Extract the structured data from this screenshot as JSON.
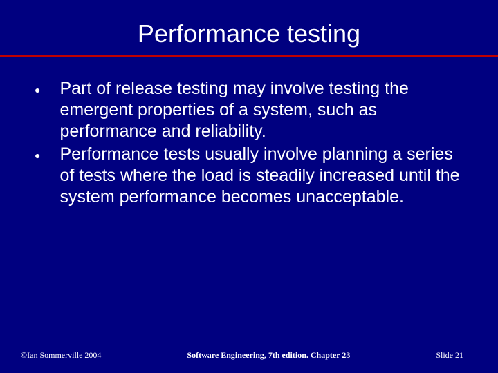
{
  "title": "Performance testing",
  "bullets": [
    "Part of release testing may involve testing the emergent properties of a system, such as performance and reliability.",
    "Performance tests usually involve planning a series of tests where the load is steadily increased until the system performance becomes unacceptable."
  ],
  "footer": {
    "left": "©Ian Sommerville 2004",
    "center": "Software Engineering, 7th edition. Chapter 23",
    "right": "Slide 21"
  },
  "colors": {
    "background": "#000080",
    "text": "#ffffff",
    "underline": "#c00000"
  }
}
